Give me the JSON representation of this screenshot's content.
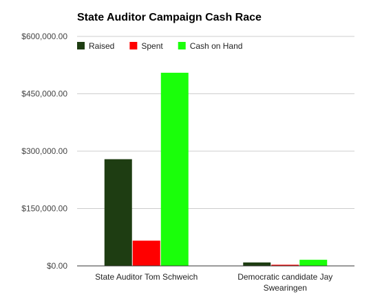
{
  "chart_data": {
    "type": "bar",
    "title": "State Auditor Campaign Cash Race",
    "categories": [
      [
        "State Auditor Tom Schweich"
      ],
      [
        "Democratic candidate Jay",
        "Swearingen"
      ]
    ],
    "series": [
      {
        "name": "Raised",
        "color": "#1e3d12",
        "values": [
          279000,
          9000
        ]
      },
      {
        "name": "Spent",
        "color": "#ff0000",
        "values": [
          66000,
          3000
        ]
      },
      {
        "name": "Cash on Hand",
        "color": "#1aff0a",
        "values": [
          505000,
          16000
        ]
      }
    ],
    "ylim": [
      0,
      600000
    ],
    "yticks": [
      0,
      150000,
      300000,
      450000,
      600000
    ],
    "ytick_labels": [
      "$0.00",
      "$150,000.00",
      "$300,000.00",
      "$450,000.00",
      "$600,000.00"
    ],
    "grid": true,
    "legend_position": "top-left"
  }
}
